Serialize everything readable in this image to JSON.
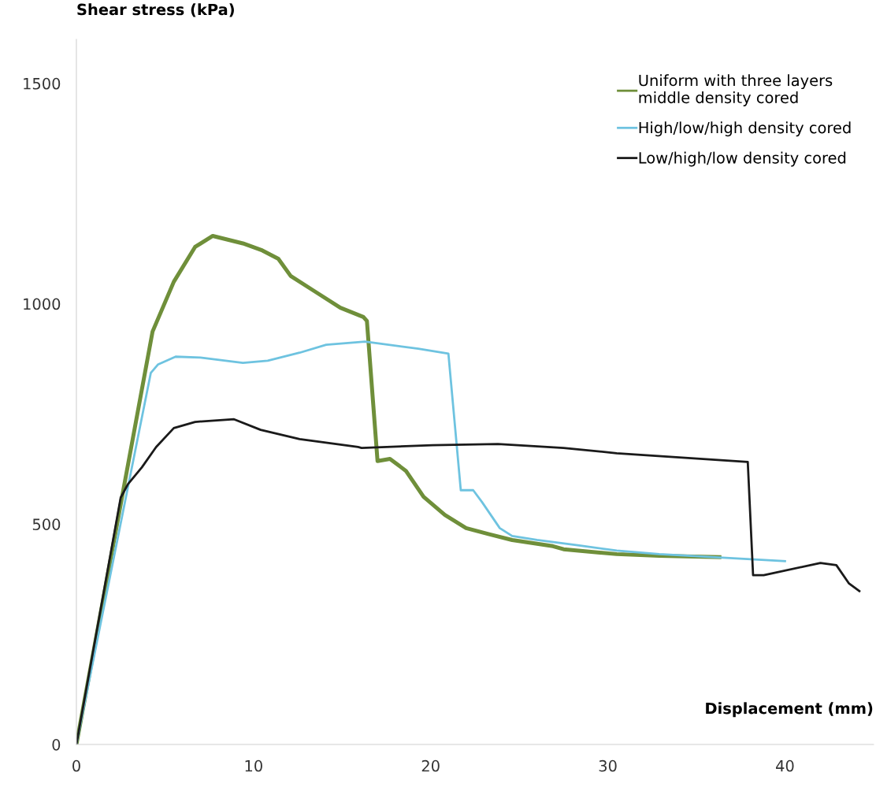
{
  "chart_data": {
    "type": "line",
    "xlabel": "Displacement (mm)",
    "ylabel": "Shear stress (kPa)",
    "xlim": [
      0,
      45
    ],
    "xticks": [
      0,
      10,
      20,
      30,
      40
    ],
    "ylim": [
      0,
      1600
    ],
    "yticks": [
      0,
      500,
      1000,
      1500
    ],
    "grid": false,
    "legend": "top right",
    "marker": "none",
    "line_style": "solid",
    "series": [
      {
        "name": "Uniform with three layers\nmiddle density cored",
        "color": "#6f8f3a",
        "x": [
          0,
          4.3,
          5.5,
          6.7,
          7.7,
          9.4,
          10.5,
          11.4,
          12.1,
          13.5,
          14.9,
          16.2,
          16.4,
          17.0,
          17.7,
          18.6,
          19.6,
          20.8,
          22.0,
          23.3,
          24.6,
          26.9,
          27.5,
          30.5,
          32.9,
          36.3
        ],
        "values": [
          0,
          937,
          1050,
          1129,
          1154,
          1137,
          1121,
          1102,
          1063,
          1027,
          991,
          970,
          961,
          643,
          648,
          621,
          562,
          521,
          491,
          477,
          464,
          450,
          443,
          432,
          428,
          425
        ]
      },
      {
        "name": "High/low/high density cored",
        "color": "#6ec3e0",
        "x": [
          0,
          4.2,
          4.6,
          5.6,
          7.0,
          9.4,
          10.8,
          12.6,
          14.1,
          16.3,
          19.3,
          21.0,
          21.7,
          22.4,
          22.9,
          23.9,
          24.6,
          26.0,
          28.3,
          30.5,
          32.9,
          40.0
        ],
        "values": [
          0,
          843,
          862,
          880,
          878,
          866,
          871,
          889,
          907,
          914,
          898,
          887,
          577,
          577,
          550,
          491,
          473,
          464,
          452,
          440,
          432,
          416
        ]
      },
      {
        "name": "Low/high/low density cored",
        "color": "#1a1a1a",
        "x": [
          0,
          2.5,
          2.9,
          3.7,
          4.5,
          5.5,
          6.7,
          8.9,
          10.4,
          12.6,
          15.9,
          16.1,
          20.1,
          23.8,
          27.5,
          30.5,
          37.9,
          38.2,
          38.8,
          42.0,
          42.9,
          43.6,
          44.2
        ],
        "values": [
          0,
          560,
          590,
          629,
          675,
          718,
          732,
          738,
          714,
          693,
          675,
          673,
          679,
          682,
          673,
          661,
          641,
          384,
          384,
          412,
          407,
          366,
          348
        ]
      }
    ]
  }
}
